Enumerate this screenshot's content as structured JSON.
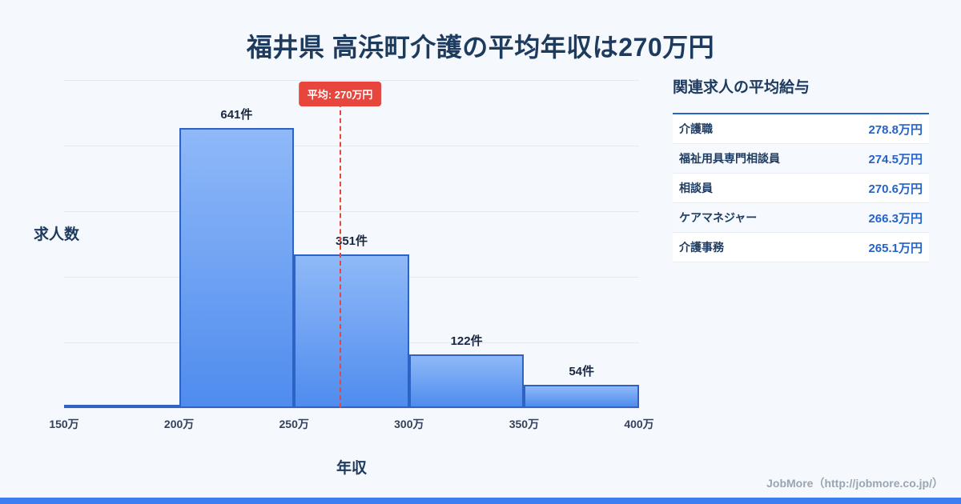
{
  "title": "福井県 高浜町介護の平均年収は270万円",
  "chart_data": {
    "type": "bar",
    "title": "福井県 高浜町介護の平均年収は270万円",
    "xlabel": "年収",
    "ylabel": "求人数",
    "x_tick_labels": [
      "150万",
      "200万",
      "250万",
      "300万",
      "350万",
      "400万"
    ],
    "x_range": [
      150,
      400
    ],
    "grid": true,
    "bins": [
      {
        "range_start": 150,
        "range_end": 200,
        "count": 8,
        "label": ""
      },
      {
        "range_start": 200,
        "range_end": 250,
        "count": 641,
        "label": "641件"
      },
      {
        "range_start": 250,
        "range_end": 300,
        "count": 351,
        "label": "351件"
      },
      {
        "range_start": 300,
        "range_end": 350,
        "count": 122,
        "label": "122件"
      },
      {
        "range_start": 350,
        "range_end": 400,
        "count": 54,
        "label": "54件"
      }
    ],
    "average_line": {
      "value": 270,
      "label": "平均: 270万円"
    }
  },
  "panel": {
    "title": "関連求人の平均給与",
    "rows": [
      {
        "label": "介護職",
        "value": "278.8万円"
      },
      {
        "label": "福祉用具専門相談員",
        "value": "274.5万円"
      },
      {
        "label": "相談員",
        "value": "270.6万円"
      },
      {
        "label": "ケアマネジャー",
        "value": "266.3万円"
      },
      {
        "label": "介護事務",
        "value": "265.1万円"
      }
    ]
  },
  "footer": {
    "credit": "JobMore（http://jobmore.co.jp/）"
  },
  "colors": {
    "accent_blue": "#3d7ef2",
    "bar_fill_top": "#8fb9f8",
    "bar_fill_bottom": "#4f8cee",
    "bar_border": "#2e62c4",
    "average_red": "#e8453c",
    "value_blue": "#2563c9",
    "title_navy": "#1d3a5f"
  }
}
